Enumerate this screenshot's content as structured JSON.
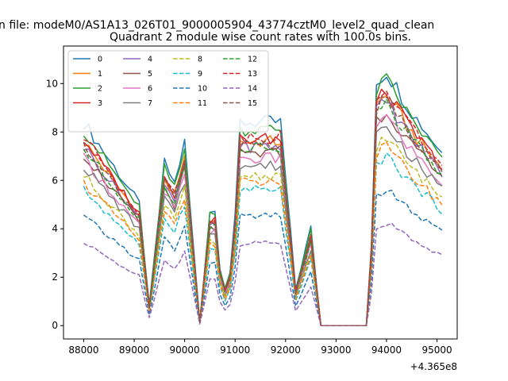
{
  "chart_data": {
    "type": "line",
    "suptitle": "n file: modeM0/AS1A13_026T01_9000005904_43774cztM0_level2_quad_clean",
    "title": "Quadrant 2 module wise count rates with 100.0s bins.",
    "xlabel": "",
    "ylabel": "",
    "x_offset_label": "+4.365e8",
    "xlim": [
      87600,
      95400
    ],
    "ylim": [
      -0.55,
      11.55
    ],
    "x_ticks": [
      88000,
      89000,
      90000,
      91000,
      92000,
      93000,
      94000,
      95000
    ],
    "x_tick_labels": [
      "88000",
      "89000",
      "90000",
      "91000",
      "92000",
      "93000",
      "94000",
      "95000"
    ],
    "y_ticks": [
      0,
      2,
      4,
      6,
      8,
      10
    ],
    "y_tick_labels": [
      "0",
      "2",
      "4",
      "6",
      "8",
      "10"
    ],
    "grid": false,
    "legend_position": "upper-left",
    "legend_columns": 4,
    "shape_anchors": {
      "t": [
        88000,
        89100,
        89300,
        89600,
        89800,
        90000,
        90300,
        90550,
        90750,
        90950,
        91100,
        91900,
        92200,
        92500,
        92700,
        93650,
        93800,
        94000,
        94500,
        95100
      ],
      "f": [
        1.0,
        0.6,
        0.1,
        0.8,
        0.7,
        0.9,
        0.02,
        0.7,
        0.15,
        0.3,
        1.0,
        1.0,
        0.18,
        0.48,
        0.0,
        0.0,
        1.2,
        1.25,
        1.05,
        0.85
      ]
    },
    "series": [
      {
        "name": "0",
        "color": "#1f77b4",
        "linestyle": "solid",
        "level": 8.4
      },
      {
        "name": "1",
        "color": "#ff7f0e",
        "linestyle": "solid",
        "level": 7.6
      },
      {
        "name": "2",
        "color": "#2ca02c",
        "linestyle": "solid",
        "level": 8.1
      },
      {
        "name": "3",
        "color": "#d62728",
        "linestyle": "solid",
        "level": 7.7
      },
      {
        "name": "4",
        "color": "#9467bd",
        "linestyle": "solid",
        "level": 7.4
      },
      {
        "name": "5",
        "color": "#8c564b",
        "linestyle": "solid",
        "level": 7.1
      },
      {
        "name": "6",
        "color": "#e377c2",
        "linestyle": "solid",
        "level": 6.9
      },
      {
        "name": "7",
        "color": "#7f7f7f",
        "linestyle": "solid",
        "level": 6.6
      },
      {
        "name": "8",
        "color": "#bcbd22",
        "linestyle": "dashed",
        "level": 6.2
      },
      {
        "name": "9",
        "color": "#17becf",
        "linestyle": "dashed",
        "level": 5.6
      },
      {
        "name": "10",
        "color": "#1f77b4",
        "linestyle": "dashed",
        "level": 4.5
      },
      {
        "name": "11",
        "color": "#ff7f0e",
        "linestyle": "dashed",
        "level": 5.9
      },
      {
        "name": "12",
        "color": "#2ca02c",
        "linestyle": "dashed",
        "level": 7.3
      },
      {
        "name": "13",
        "color": "#d62728",
        "linestyle": "dashed",
        "level": 7.8
      },
      {
        "name": "14",
        "color": "#9467bd",
        "linestyle": "dashed",
        "level": 3.4
      },
      {
        "name": "15",
        "color": "#8c564b",
        "linestyle": "dashed",
        "level": 7.5
      }
    ]
  }
}
